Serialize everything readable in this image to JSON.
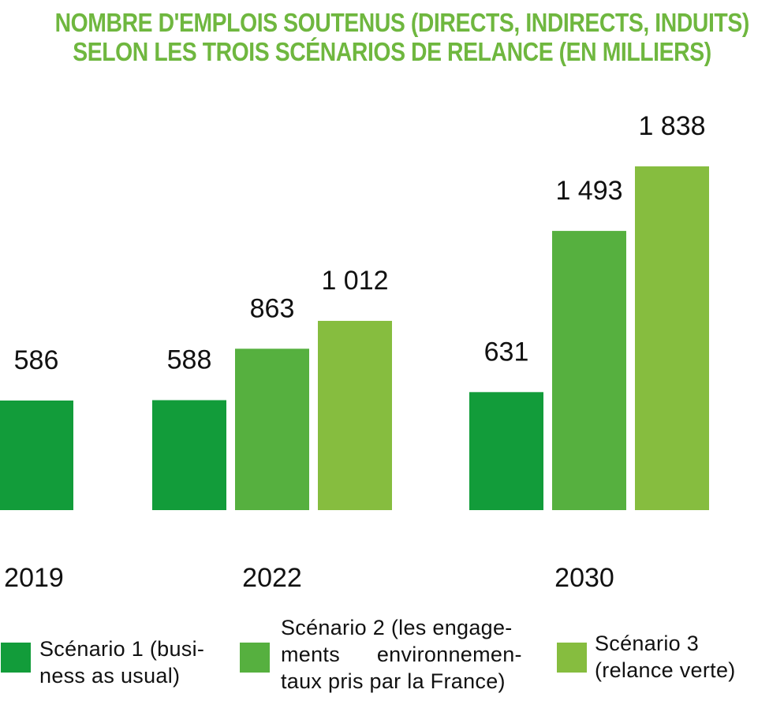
{
  "title": {
    "line1": "NOMBRE D'EMPLOIS SOUTENUS (DIRECTS, INDIRECTS, INDUITS)",
    "line2": "SELON LES TROIS SCÉNARIOS DE RELANCE (EN MILLIERS)"
  },
  "colors": {
    "title": "#6fb73f",
    "scenario1": "#129c3a",
    "scenario2": "#56b03f",
    "scenario3": "#86bd3f"
  },
  "chart_data": {
    "type": "bar",
    "title": "NOMBRE D'EMPLOIS SOUTENUS (DIRECTS, INDIRECTS, INDUITS) SELON LES TROIS SCÉNARIOS DE RELANCE (EN MILLIERS)",
    "categories": [
      "2019",
      "2022",
      "2030"
    ],
    "series": [
      {
        "name": "Scénario 1 (business as usual)",
        "values": [
          586,
          588,
          631
        ],
        "labels": [
          "586",
          "588",
          "631"
        ]
      },
      {
        "name": "Scénario 2 (les engagements environnementaux pris par la France)",
        "values": [
          null,
          863,
          1493
        ],
        "labels": [
          "",
          "863",
          "1 493"
        ]
      },
      {
        "name": "Scénario 3 (relance verte)",
        "values": [
          null,
          1012,
          1838
        ],
        "labels": [
          "",
          "1 012",
          "1 838"
        ]
      }
    ],
    "ylim": [
      0,
      2000
    ],
    "grid": false,
    "legend": "bottom"
  },
  "legend": [
    {
      "lines": [
        "Scénario 1 (busi-",
        "ness as usual)"
      ]
    },
    {
      "lines": [
        "Scénario 2 (les engage-",
        "ments      environnemen-",
        "taux pris par la France)"
      ]
    },
    {
      "lines": [
        "Scénario 3",
        "(relance verte)"
      ]
    }
  ]
}
